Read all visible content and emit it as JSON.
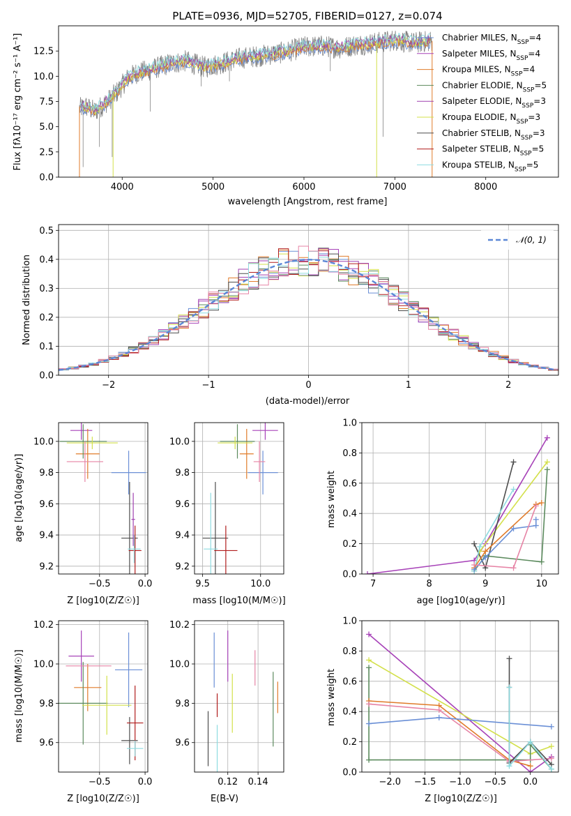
{
  "colors": {
    "Chabrier MILES": "#6a8fd6",
    "Salpeter MILES": "#a742b8",
    "Kroupa MILES": "#e07b2a",
    "Chabrier ELODIE": "#5b8a5d",
    "Salpeter ELODIE": "#a040b0",
    "Kroupa ELODIE": "#d3e04a",
    "Chabrier STELIB": "#4d4d4d",
    "Salpeter STELIB": "#b01c1c",
    "Kroupa STELIB": "#8ddbe0",
    "pink": "#e683a5",
    "data": "#808080",
    "gauss": "#5b87d6"
  },
  "chart_data": [
    {
      "id": "spectrum",
      "type": "line",
      "title": "PLATE=0936, MJD=52705, FIBERID=0127, z=0.074",
      "xlabel": "wavelength [Angstrom, rest frame]",
      "ylabel": "Flux [f_λ10^-17 erg cm^-2 s^-1 A^-1]",
      "xlim": [
        3300,
        8800
      ],
      "ylim": [
        0,
        15
      ],
      "xticks": [
        4000,
        5000,
        6000,
        7000,
        8000
      ],
      "yticks": [
        0.0,
        2.5,
        5.0,
        7.5,
        10.0,
        12.5
      ],
      "legend_position": "right",
      "legend": [
        {
          "name": "Chabrier MILES",
          "nssp": "4"
        },
        {
          "name": "Salpeter MILES",
          "nssp": "4"
        },
        {
          "name": "Kroupa MILES",
          "nssp": "4"
        },
        {
          "name": "Chabrier ELODIE",
          "nssp": "5"
        },
        {
          "name": "Salpeter ELODIE",
          "nssp": "3"
        },
        {
          "name": "Kroupa ELODIE",
          "nssp": "3"
        },
        {
          "name": "Chabrier STELIB",
          "nssp": "3"
        },
        {
          "name": "Salpeter STELIB",
          "nssp": "5"
        },
        {
          "name": "Kroupa STELIB",
          "nssp": "5"
        }
      ],
      "continuum": [
        [
          3530,
          6.8
        ],
        [
          3600,
          7.0
        ],
        [
          3700,
          6.5
        ],
        [
          3850,
          7.6
        ],
        [
          3950,
          8.5
        ],
        [
          4050,
          9.7
        ],
        [
          4150,
          10.3
        ],
        [
          4300,
          10.6
        ],
        [
          4500,
          11.2
        ],
        [
          4700,
          11.5
        ],
        [
          4900,
          10.9
        ],
        [
          5100,
          11.3
        ],
        [
          5300,
          11.8
        ],
        [
          5500,
          12.0
        ],
        [
          5800,
          12.4
        ],
        [
          6000,
          12.9
        ],
        [
          6200,
          13.0
        ],
        [
          6400,
          12.8
        ],
        [
          6562,
          13.1
        ],
        [
          6800,
          13.3
        ],
        [
          7000,
          13.6
        ],
        [
          7200,
          13.3
        ],
        [
          7400,
          13.5
        ]
      ]
    },
    {
      "id": "residuals",
      "type": "line",
      "xlabel": "(data-model)/error",
      "ylabel": "Normed distribution",
      "xlim": [
        -2.5,
        2.5
      ],
      "ylim": [
        0,
        0.52
      ],
      "xticks": [
        -2,
        -1,
        0,
        1,
        2
      ],
      "yticks": [
        0.0,
        0.1,
        0.2,
        0.3,
        0.4,
        0.5
      ],
      "legend": [
        "𝒩(0, 1)"
      ],
      "legend_position": "top-right",
      "gaussian": {
        "mu": 0,
        "sigma": 1
      }
    },
    {
      "id": "age_vs_Z",
      "type": "scatter",
      "xlabel": "Z [log10(Z/Z☉)]",
      "ylabel": "age  [log10(age/yr)]",
      "xlim": [
        -0.95,
        0.03
      ],
      "ylim": [
        9.15,
        10.12
      ],
      "xticks": [
        -0.5,
        0.0
      ],
      "xticklabels": [
        "−0.5",
        "0.0"
      ],
      "yticks": [
        9.2,
        9.4,
        9.6,
        9.8,
        10.0
      ],
      "points": [
        {
          "series": "Chabrier MILES",
          "x": -0.18,
          "y": 9.8,
          "xerr": 0.19,
          "yerr": 0.14
        },
        {
          "series": "Salpeter MILES",
          "x": -0.7,
          "y": 10.07,
          "xerr": 0.12,
          "yerr": 0.06
        },
        {
          "series": "Kroupa MILES",
          "x": -0.63,
          "y": 9.92,
          "xerr": 0.13,
          "yerr": 0.16
        },
        {
          "series": "Chabrier ELODIE",
          "x": -0.68,
          "y": 10.0,
          "xerr": 0.26,
          "yerr": 0.11
        },
        {
          "series": "Kroupa ELODIE",
          "x": -0.58,
          "y": 9.99,
          "xerr": 0.28,
          "yerr": 0.04
        },
        {
          "series": "Chabrier STELIB",
          "x": -0.17,
          "y": 9.38,
          "xerr": 0.09,
          "yerr": 0.36
        },
        {
          "series": "Salpeter STELIB",
          "x": -0.11,
          "y": 9.3,
          "xerr": 0.07,
          "yerr": 0.16
        },
        {
          "series": "Kroupa STELIB",
          "x": -0.12,
          "y": 9.31,
          "xerr": 0.07,
          "yerr": 0.09
        },
        {
          "series": "pink",
          "x": -0.66,
          "y": 9.87,
          "xerr": 0.2,
          "yerr": 0.13
        },
        {
          "series": "Salpeter ELODIE",
          "x": -0.13,
          "y": 9.5,
          "xerr": 0.02,
          "yerr": 0.17
        }
      ]
    },
    {
      "id": "age_vs_mass",
      "type": "scatter",
      "xlabel": "mass [log10(M/M☉)]",
      "ylabel": "",
      "xlim": [
        9.43,
        10.2
      ],
      "ylim": [
        9.15,
        10.12
      ],
      "xticks": [
        9.5,
        10.0
      ],
      "xticklabels": [
        "9.5",
        "10.0"
      ],
      "yticks": [
        9.2,
        9.4,
        9.6,
        9.8,
        10.0
      ],
      "points": [
        {
          "series": "Chabrier MILES",
          "x": 10.02,
          "y": 9.8,
          "xerr": 0.13,
          "yerr": 0.14
        },
        {
          "series": "Salpeter MILES",
          "x": 10.04,
          "y": 10.07,
          "xerr": 0.11,
          "yerr": 0.06
        },
        {
          "series": "Kroupa MILES",
          "x": 9.88,
          "y": 9.92,
          "xerr": 0.06,
          "yerr": 0.16
        },
        {
          "series": "Chabrier ELODIE",
          "x": 9.8,
          "y": 10.0,
          "xerr": 0.15,
          "yerr": 0.11
        },
        {
          "series": "Kroupa ELODIE",
          "x": 9.78,
          "y": 9.99,
          "xerr": 0.15,
          "yerr": 0.04
        },
        {
          "series": "Chabrier STELIB",
          "x": 9.61,
          "y": 9.38,
          "xerr": 0.11,
          "yerr": 0.36
        },
        {
          "series": "Salpeter STELIB",
          "x": 9.7,
          "y": 9.3,
          "xerr": 0.1,
          "yerr": 0.16
        },
        {
          "series": "Kroupa STELIB",
          "x": 9.57,
          "y": 9.31,
          "xerr": 0.06,
          "yerr": 0.36
        },
        {
          "series": "pink",
          "x": 9.99,
          "y": 9.87,
          "xerr": 0.05,
          "yerr": 0.13
        }
      ]
    },
    {
      "id": "massweight_vs_age",
      "type": "line",
      "xlabel": "age  [log10(age/yr)]",
      "ylabel": "mass weight",
      "xlim": [
        6.8,
        10.3
      ],
      "ylim": [
        0,
        1.0
      ],
      "xticks": [
        7,
        8,
        9,
        10
      ],
      "yticks": [
        0.0,
        0.2,
        0.4,
        0.6,
        0.8,
        1.0
      ],
      "series": [
        {
          "name": "Salpeter MILES",
          "points": [
            [
              6.9,
              0.0
            ],
            [
              8.8,
              0.09
            ],
            [
              9.0,
              0.2
            ],
            [
              10.1,
              0.9
            ]
          ]
        },
        {
          "name": "Kroupa ELODIE",
          "points": [
            [
              8.8,
              0.03
            ],
            [
              8.9,
              0.15
            ],
            [
              10.1,
              0.74
            ]
          ]
        },
        {
          "name": "Chabrier STELIB",
          "points": [
            [
              8.8,
              0.2
            ],
            [
              9.0,
              0.04
            ],
            [
              9.5,
              0.74
            ]
          ]
        },
        {
          "name": "Chabrier ELODIE",
          "points": [
            [
              8.8,
              0.02
            ],
            [
              9.0,
              0.12
            ],
            [
              10.0,
              0.08
            ],
            [
              10.1,
              0.69
            ]
          ]
        },
        {
          "name": "Kroupa STELIB",
          "points": [
            [
              8.8,
              0.02
            ],
            [
              8.9,
              0.18
            ],
            [
              9.5,
              0.56
            ]
          ]
        },
        {
          "name": "Kroupa MILES",
          "points": [
            [
              8.8,
              0.04
            ],
            [
              9.0,
              0.15
            ],
            [
              9.9,
              0.46
            ],
            [
              10.0,
              0.47
            ]
          ]
        },
        {
          "name": "Chabrier MILES",
          "points": [
            [
              8.8,
              0.03
            ],
            [
              9.0,
              0.11
            ],
            [
              9.5,
              0.3
            ],
            [
              9.9,
              0.32
            ],
            [
              9.9,
              0.36
            ]
          ]
        },
        {
          "name": "pink",
          "points": [
            [
              8.8,
              0.06
            ],
            [
              9.5,
              0.04
            ],
            [
              9.9,
              0.45
            ]
          ]
        }
      ]
    },
    {
      "id": "mass_vs_Z",
      "type": "scatter",
      "xlabel": "Z [log10(Z/Z☉)]",
      "ylabel": "mass [log10(M/M☉)]",
      "xlim": [
        -0.95,
        0.03
      ],
      "ylim": [
        9.45,
        10.22
      ],
      "xticks": [
        -0.5,
        0.0
      ],
      "xticklabels": [
        "−0.5",
        "0.0"
      ],
      "yticks": [
        9.6,
        9.8,
        10.0,
        10.2
      ],
      "points": [
        {
          "series": "Chabrier MILES",
          "x": -0.18,
          "y": 9.97,
          "xerr": 0.15,
          "yerr": 0.19
        },
        {
          "series": "Salpeter MILES",
          "x": -0.7,
          "y": 10.04,
          "xerr": 0.14,
          "yerr": 0.13
        },
        {
          "series": "Kroupa MILES",
          "x": -0.63,
          "y": 9.88,
          "xerr": 0.15,
          "yerr": 0.12
        },
        {
          "series": "Chabrier ELODIE",
          "x": -0.68,
          "y": 9.8,
          "xerr": 0.27,
          "yerr": 0.21
        },
        {
          "series": "Kroupa ELODIE",
          "x": -0.42,
          "y": 9.79,
          "xerr": 0.27,
          "yerr": 0.15
        },
        {
          "series": "Chabrier STELIB",
          "x": -0.17,
          "y": 9.61,
          "xerr": 0.09,
          "yerr": 0.12
        },
        {
          "series": "Salpeter STELIB",
          "x": -0.11,
          "y": 9.7,
          "xerr": 0.09,
          "yerr": 0.19
        },
        {
          "series": "Kroupa STELIB",
          "x": -0.11,
          "y": 9.57,
          "xerr": 0.09,
          "yerr": 0.04
        },
        {
          "series": "pink",
          "x": -0.62,
          "y": 9.99,
          "xerr": 0.25,
          "yerr": 0.0
        }
      ]
    },
    {
      "id": "mass_vs_ebv",
      "type": "scatter",
      "xlabel": "E(B-V)",
      "ylabel": "",
      "xlim": [
        0.098,
        0.157
      ],
      "ylim": [
        9.45,
        10.22
      ],
      "xticks": [
        0.12,
        0.14
      ],
      "xticklabels": [
        "0.12",
        "0.14"
      ],
      "yticks": [
        9.6,
        9.8,
        10.0,
        10.2
      ],
      "points": [
        {
          "series": "Chabrier MILES",
          "x": 0.111,
          "y": 10.02,
          "xerr": 0,
          "yerr": 0.14
        },
        {
          "series": "Salpeter MILES",
          "x": 0.12,
          "y": 10.04,
          "xerr": 0,
          "yerr": 0.13
        },
        {
          "series": "Kroupa MILES",
          "x": 0.153,
          "y": 9.83,
          "xerr": 0,
          "yerr": 0.08
        },
        {
          "series": "Chabrier ELODIE",
          "x": 0.15,
          "y": 9.77,
          "xerr": 0,
          "yerr": 0.19
        },
        {
          "series": "Kroupa ELODIE",
          "x": 0.123,
          "y": 9.8,
          "xerr": 0,
          "yerr": 0.15
        },
        {
          "series": "Chabrier STELIB",
          "x": 0.107,
          "y": 9.62,
          "xerr": 0,
          "yerr": 0.14
        },
        {
          "series": "Salpeter STELIB",
          "x": 0.113,
          "y": 9.79,
          "xerr": 0,
          "yerr": 0.06
        },
        {
          "series": "Kroupa STELIB",
          "x": 0.113,
          "y": 9.57,
          "xerr": 0,
          "yerr": 0.12
        },
        {
          "series": "pink",
          "x": 0.138,
          "y": 9.98,
          "xerr": 0,
          "yerr": 0.09
        }
      ]
    },
    {
      "id": "massweight_vs_Z",
      "type": "line",
      "xlabel": "Z [log10(Z/Z☉)]",
      "ylabel": "mass weight",
      "xlim": [
        -2.4,
        0.4
      ],
      "ylim": [
        0,
        1.0
      ],
      "xticks": [
        -2.0,
        -1.5,
        -1.0,
        -0.5,
        0.0
      ],
      "xticklabels": [
        "−2.0",
        "−1.5",
        "−1.0",
        "−0.5",
        "0.0"
      ],
      "yticks": [
        0.0,
        0.2,
        0.4,
        0.6,
        0.8,
        1.0
      ],
      "series": [
        {
          "name": "Salpeter MILES",
          "points": [
            [
              -2.3,
              0.91
            ],
            [
              0.0,
              0.0
            ],
            [
              0.3,
              0.1
            ]
          ]
        },
        {
          "name": "Kroupa ELODIE",
          "points": [
            [
              -2.3,
              0.74
            ],
            [
              0.0,
              0.12
            ],
            [
              0.3,
              0.17
            ]
          ]
        },
        {
          "name": "Chabrier ELODIE",
          "points": [
            [
              -2.3,
              0.69
            ],
            [
              -2.3,
              0.08
            ],
            [
              0.0,
              0.08
            ],
            [
              0.0,
              0.18
            ],
            [
              0.3,
              0.02
            ]
          ]
        },
        {
          "name": "Kroupa MILES",
          "points": [
            [
              -2.3,
              0.47
            ],
            [
              -1.3,
              0.44
            ],
            [
              -0.3,
              0.08
            ],
            [
              0.0,
              0.04
            ]
          ]
        },
        {
          "name": "pink",
          "points": [
            [
              -2.3,
              0.45
            ],
            [
              -1.3,
              0.41
            ],
            [
              -0.3,
              0.07
            ],
            [
              0.3,
              0.09
            ]
          ]
        },
        {
          "name": "Chabrier MILES",
          "points": [
            [
              -2.3,
              0.32
            ],
            [
              -1.3,
              0.36
            ],
            [
              0.3,
              0.3
            ]
          ]
        },
        {
          "name": "Chabrier STELIB",
          "points": [
            [
              -0.3,
              0.75
            ],
            [
              -0.3,
              0.56
            ],
            [
              -0.3,
              0.06
            ],
            [
              0.0,
              0.2
            ],
            [
              0.3,
              0.05
            ]
          ]
        },
        {
          "name": "Kroupa STELIB",
          "points": [
            [
              -0.3,
              0.56
            ],
            [
              -0.3,
              0.04
            ],
            [
              0.0,
              0.2
            ],
            [
              0.3,
              0.02
            ]
          ]
        }
      ]
    }
  ]
}
